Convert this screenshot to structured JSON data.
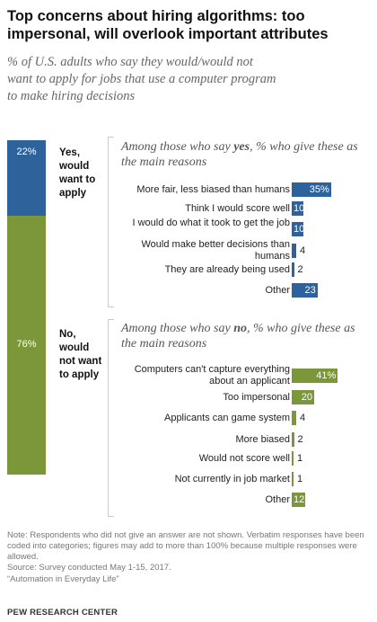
{
  "title": "Top concerns about hiring algorithms: too impersonal, will overlook important attributes",
  "subtitle": "% of U.S. adults who say they would/would not want to apply for jobs that use a computer program to make hiring decisions",
  "chart_data": [
    {
      "type": "bar",
      "orientation": "vertical-stacked",
      "categories": [
        "Yes, would want to apply",
        "No, would not want to apply"
      ],
      "values": [
        22,
        76
      ],
      "labels": [
        "22%",
        "76%"
      ],
      "colors": [
        "#2e629a",
        "#7c963a"
      ]
    },
    {
      "type": "bar",
      "orientation": "horizontal",
      "title_prefix": "Among those who say ",
      "title_emph": "yes",
      "title_suffix": ", % who give these as the main reasons",
      "categories": [
        "More fair, less biased than humans",
        "Think I would score well",
        "I would do what it took to get the job",
        "Would make better decisions than humans",
        "They are already being used",
        "Other"
      ],
      "values": [
        35,
        10,
        10,
        4,
        2,
        23
      ],
      "labels": [
        "35%",
        "10",
        "10",
        "4",
        "2",
        "23"
      ],
      "color": "#2e629a"
    },
    {
      "type": "bar",
      "orientation": "horizontal",
      "title_prefix": "Among those who say ",
      "title_emph": "no",
      "title_suffix": ", % who give these as the main reasons",
      "categories": [
        "Computers can't capture everything about an applicant",
        "Too impersonal",
        "Applicants can game system",
        "More biased",
        "Would not score well",
        "Not currently in job market",
        "Other"
      ],
      "values": [
        41,
        20,
        4,
        2,
        1,
        1,
        12
      ],
      "labels": [
        "41%",
        "20",
        "4",
        "2",
        "1",
        "1",
        "12"
      ],
      "color": "#7c963a"
    }
  ],
  "yes_label": "Yes,\nwould\nwant to\napply",
  "no_label": "No,\nwould\nnot want\nto apply",
  "note": "Note: Respondents who did not give an answer are not shown. Verbatim responses have been coded into categories; figures may add to more than 100% because multiple responses were allowed.",
  "source": "Source: Survey conducted May 1-15, 2017.",
  "report": "“Automation in Everyday Life”",
  "brand": "PEW RESEARCH CENTER"
}
